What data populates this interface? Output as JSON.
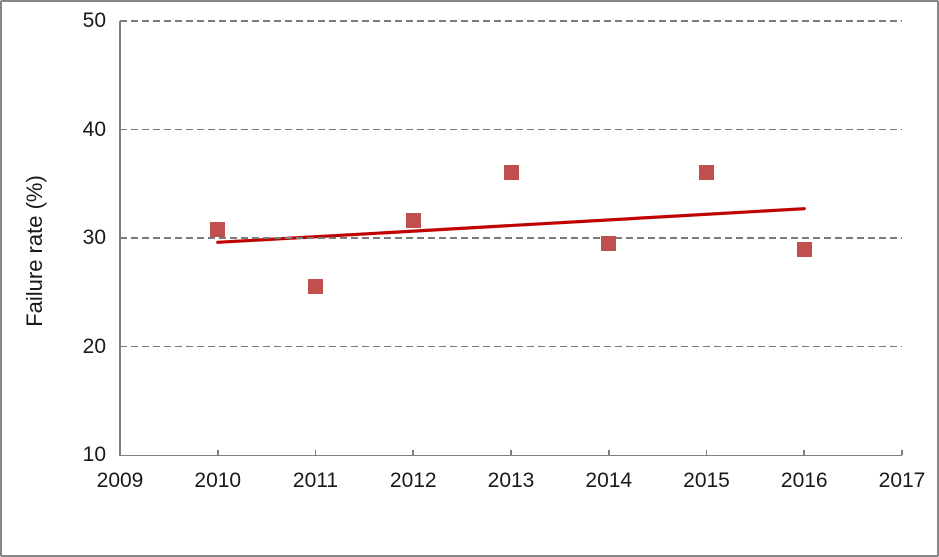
{
  "chart_data": {
    "type": "scatter",
    "title": "",
    "xlabel": "",
    "ylabel": "Failure rate (%)",
    "xlim": [
      2009,
      2017
    ],
    "ylim": [
      10,
      50
    ],
    "x_ticks": [
      2009,
      2010,
      2011,
      2012,
      2013,
      2014,
      2015,
      2016,
      2017
    ],
    "y_ticks": [
      10,
      20,
      30,
      40,
      50
    ],
    "grid": "horizontal-dashed",
    "legend": "none",
    "series": [
      {
        "marker": "square",
        "color": "#C0504D",
        "points": [
          {
            "x": 2010,
            "y": 30.8
          },
          {
            "x": 2011,
            "y": 25.5
          },
          {
            "x": 2012,
            "y": 31.6
          },
          {
            "x": 2013,
            "y": 36.0
          },
          {
            "x": 2014,
            "y": 29.5
          },
          {
            "x": 2015,
            "y": 36.0
          },
          {
            "x": 2016,
            "y": 28.9
          }
        ]
      }
    ],
    "trendline": {
      "color": "#C00000",
      "width": 3.2,
      "x_start": 2010,
      "y_start": 29.6,
      "x_end": 2016,
      "y_end": 32.7
    }
  },
  "frame": {
    "border_color": "#878787",
    "background": "#ffffff",
    "gridline_color": "#7b7b7b",
    "axis_color": "#7f7f7f",
    "label_color": "#191919"
  }
}
